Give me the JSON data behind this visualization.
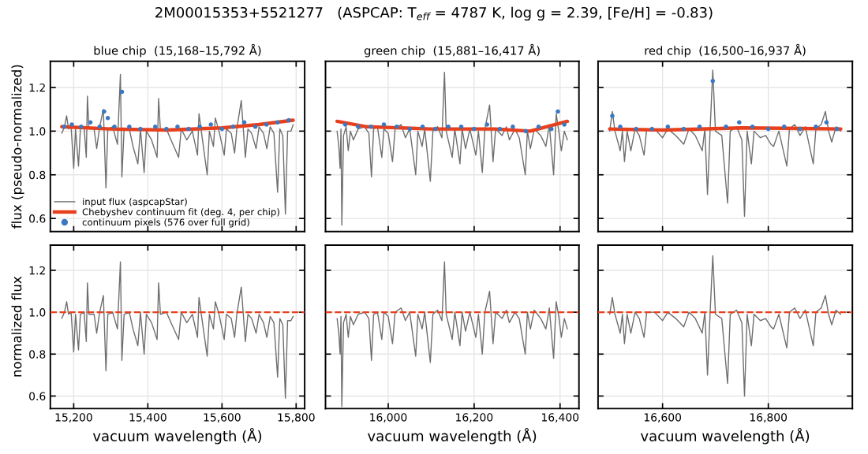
{
  "chart_data": [
    {
      "type": "line",
      "title": "blue chip  (15,168–15,792 Å)",
      "ylabel": "flux (pseudo-normalized)",
      "annotations": [
        "2M00015353+5521277   (ASPCAP: T$_{eff}$ = 4787 K, log g = 2.39, [Fe/H] = -0.83)"
      ],
      "xlim": [
        15137,
        15823
      ],
      "xticks": [
        15200,
        15400,
        15600,
        15800
      ],
      "ylim": [
        0.54,
        1.32
      ],
      "yticks": [
        0.6,
        0.8,
        {
          "value": 1.0,
          "label": "1.0"
        },
        1.2
      ],
      "tick_labels": "y",
      "grid": true,
      "legend": "bottom left",
      "series": [
        {
          "name": "input flux (aspcapStar)",
          "color": "#6e6e6e",
          "x": [
            15168,
            15175,
            15181,
            15186,
            15193,
            15200,
            15205,
            15213,
            15218,
            15228,
            15234,
            15237,
            15241,
            15255,
            15262,
            15270,
            15280,
            15287,
            15292,
            15305,
            15318,
            15326,
            15330,
            15336,
            15350,
            15360,
            15373,
            15380,
            15390,
            15396,
            15410,
            15425,
            15429,
            15434,
            15450,
            15465,
            15483,
            15490,
            15505,
            15520,
            15534,
            15538,
            15545,
            15560,
            15566,
            15577,
            15582,
            15592,
            15606,
            15612,
            15625,
            15634,
            15640,
            15652,
            15663,
            15670,
            15680,
            15692,
            15700,
            15712,
            15721,
            15730,
            15740,
            15750,
            15756,
            15764,
            15771,
            15777,
            15786,
            15792
          ],
          "values": [
            0.99,
            1.02,
            1.07,
            1.01,
            1.02,
            0.83,
            1.01,
            0.84,
            1.01,
            1.02,
            0.88,
            1.16,
            1.01,
            1.01,
            0.92,
            1.02,
            1.1,
            0.74,
            1.01,
            1.02,
            0.94,
            1.26,
            0.79,
            1.01,
            1.01,
            0.93,
            0.85,
            1.01,
            0.81,
            1.0,
            0.96,
            0.88,
            1.15,
            1.0,
            1.01,
            0.95,
            0.88,
            1.01,
            0.96,
            1.0,
            0.89,
            1.08,
            0.99,
            0.8,
            1.0,
            0.93,
            1.06,
            1.0,
            0.89,
            1.01,
            0.99,
            0.9,
            1.01,
            1.14,
            0.88,
            1.01,
            0.99,
            0.92,
            1.02,
            0.99,
            0.92,
            1.02,
            0.99,
            0.72,
            1.01,
            0.98,
            0.62,
            1.0,
            1.0,
            1.03
          ]
        },
        {
          "name": "Chebyshev continuum fit (deg. 4, per chip)",
          "color": "#e8401c",
          "x": [
            15168,
            15300,
            15450,
            15600,
            15700,
            15792
          ],
          "values": [
            1.02,
            1.01,
            1.005,
            1.015,
            1.03,
            1.05
          ]
        },
        {
          "name": "continuum pixels (576 over full grid)",
          "type": "scatter",
          "color": "#3a78c2",
          "x": [
            15175,
            15195,
            15220,
            15245,
            15270,
            15282,
            15292,
            15310,
            15330,
            15350,
            15380,
            15420,
            15450,
            15480,
            15510,
            15540,
            15570,
            15600,
            15630,
            15660,
            15690,
            15720,
            15750,
            15780
          ],
          "values": [
            1.02,
            1.03,
            1.02,
            1.04,
            1.02,
            1.09,
            1.06,
            1.02,
            1.18,
            1.02,
            1.01,
            1.02,
            1.01,
            1.02,
            1.01,
            1.02,
            1.03,
            1.01,
            1.02,
            1.04,
            1.02,
            1.03,
            1.04,
            1.05
          ]
        }
      ]
    },
    {
      "type": "line",
      "title": "green chip  (15,881–16,417 Å)",
      "xlim": [
        15854,
        16444
      ],
      "xticks": [
        16000,
        16200,
        16400
      ],
      "ylim": [
        0.54,
        1.32
      ],
      "yticks": [
        0.6,
        0.8,
        1.0,
        1.2
      ],
      "tick_labels": false,
      "grid": true,
      "series": [
        {
          "color": "#6e6e6e",
          "x": [
            15881,
            15885,
            15888,
            15890,
            15892,
            15896,
            15902,
            15907,
            15912,
            15919,
            15930,
            15945,
            15955,
            15961,
            15966,
            15975,
            15985,
            15990,
            16000,
            16010,
            16016,
            16030,
            16040,
            16050,
            16064,
            16069,
            16079,
            16085,
            16098,
            16104,
            16115,
            16125,
            16131,
            16135,
            16149,
            16155,
            16167,
            16172,
            16180,
            16190,
            16204,
            16210,
            16219,
            16225,
            16236,
            16244,
            16250,
            16265,
            16275,
            16282,
            16295,
            16305,
            16319,
            16324,
            16331,
            16340,
            16355,
            16367,
            16375,
            16385,
            16391,
            16397,
            16403,
            16410,
            16417
          ],
          "values": [
            1.0,
            0.93,
            0.83,
            1.01,
            0.57,
            0.98,
            1.02,
            0.91,
            1.0,
            0.96,
            1.01,
            1.02,
            0.99,
            0.79,
            1.01,
            1.02,
            0.88,
            1.01,
            0.99,
            0.86,
            1.01,
            1.03,
            0.97,
            1.01,
            0.8,
            1.0,
            0.93,
            1.01,
            0.77,
            1.0,
            1.02,
            0.97,
            1.27,
            1.0,
            0.88,
            1.01,
            0.85,
            1.01,
            0.92,
            1.01,
            0.89,
            1.0,
            0.81,
            1.01,
            1.12,
            0.86,
            1.01,
            0.98,
            1.02,
            0.96,
            1.01,
            0.97,
            0.8,
            1.0,
            0.92,
            1.01,
            0.98,
            0.93,
            1.03,
            0.8,
            1.08,
            1.0,
            0.91,
            1.0,
            0.96
          ]
        },
        {
          "color": "#e8401c",
          "x": [
            15881,
            15950,
            16100,
            16250,
            16330,
            16417
          ],
          "values": [
            1.045,
            1.02,
            1.01,
            1.01,
            1.0,
            1.045
          ]
        },
        {
          "type": "scatter",
          "color": "#3a78c2",
          "x": [
            15900,
            15930,
            15960,
            15990,
            16020,
            16050,
            16080,
            16110,
            16140,
            16170,
            16200,
            16230,
            16260,
            16290,
            16320,
            16350,
            16380,
            16395,
            16410
          ],
          "values": [
            1.03,
            1.02,
            1.02,
            1.03,
            1.02,
            1.01,
            1.02,
            1.01,
            1.02,
            1.02,
            1.01,
            1.03,
            1.01,
            1.02,
            1.0,
            1.02,
            1.01,
            1.09,
            1.03
          ]
        }
      ]
    },
    {
      "type": "line",
      "title": "red chip  (16,500–16,937 Å)",
      "xlim": [
        16478,
        16959
      ],
      "xticks": [
        16600,
        16800
      ],
      "ylim": [
        0.54,
        1.32
      ],
      "yticks": [
        0.6,
        0.8,
        1.0,
        1.2
      ],
      "tick_labels": false,
      "grid": true,
      "series": [
        {
          "color": "#6e6e6e",
          "x": [
            16500,
            16505,
            16510,
            16520,
            16524,
            16528,
            16533,
            16540,
            16548,
            16556,
            16565,
            16570,
            16585,
            16600,
            16610,
            16625,
            16640,
            16650,
            16662,
            16675,
            16680,
            16685,
            16690,
            16695,
            16700,
            16712,
            16723,
            16728,
            16740,
            16750,
            16755,
            16760,
            16768,
            16773,
            16785,
            16795,
            16805,
            16810,
            16820,
            16835,
            16840,
            16850,
            16860,
            16870,
            16885,
            16890,
            16900,
            16908,
            16914,
            16920,
            16928,
            16937
          ],
          "values": [
            1.0,
            1.09,
            1.0,
            0.91,
            1.0,
            0.86,
            1.0,
            0.91,
            1.01,
            0.98,
            0.89,
            1.01,
            1.01,
            0.97,
            1.01,
            0.98,
            0.94,
            1.01,
            0.98,
            0.91,
            1.01,
            0.71,
            1.01,
            1.28,
            1.0,
            0.98,
            0.67,
            1.0,
            1.02,
            0.96,
            0.61,
            1.0,
            0.85,
            1.0,
            0.97,
            0.98,
            0.94,
            0.93,
            1.0,
            0.84,
            1.01,
            1.03,
            0.98,
            1.02,
            0.85,
            1.01,
            1.03,
            1.09,
            1.0,
            0.95,
            1.02,
            1.0
          ]
        },
        {
          "color": "#e8401c",
          "x": [
            16500,
            16600,
            16750,
            16937
          ],
          "values": [
            1.01,
            1.005,
            1.015,
            1.01
          ]
        },
        {
          "type": "scatter",
          "color": "#3a78c2",
          "x": [
            16505,
            16520,
            16550,
            16580,
            16610,
            16640,
            16670,
            16695,
            16720,
            16745,
            16770,
            16800,
            16830,
            16860,
            16890,
            16910,
            16930
          ],
          "values": [
            1.07,
            1.02,
            1.01,
            1.01,
            1.02,
            1.01,
            1.02,
            1.23,
            1.02,
            1.04,
            1.02,
            1.01,
            1.02,
            1.01,
            1.02,
            1.04,
            1.01
          ]
        }
      ]
    },
    {
      "type": "line",
      "xlabel": "vacuum wavelength (Å)",
      "ylabel": "normalized flux",
      "xlim": [
        15137,
        15823
      ],
      "xticks": [
        {
          "value": 15200,
          "label": "15,200"
        },
        {
          "value": 15400,
          "label": "15,400"
        },
        {
          "value": 15600,
          "label": "15,600"
        },
        {
          "value": 15800,
          "label": "15,800"
        }
      ],
      "ylim": [
        0.54,
        1.32
      ],
      "yticks": [
        0.6,
        0.8,
        {
          "value": 1.0,
          "label": "1.0"
        },
        1.2
      ],
      "grid": true,
      "ref_lines": [
        {
          "axis": "y",
          "value": 1.0,
          "color": "#e8401c",
          "line_style": "dashed"
        }
      ],
      "series": [
        {
          "color": "#6e6e6e",
          "x": [
            15168,
            15175,
            15181,
            15186,
            15193,
            15200,
            15205,
            15213,
            15218,
            15228,
            15234,
            15237,
            15241,
            15255,
            15262,
            15270,
            15280,
            15287,
            15292,
            15305,
            15318,
            15326,
            15330,
            15336,
            15350,
            15360,
            15373,
            15380,
            15390,
            15396,
            15410,
            15425,
            15429,
            15434,
            15450,
            15465,
            15483,
            15490,
            15505,
            15520,
            15534,
            15538,
            15545,
            15560,
            15566,
            15577,
            15582,
            15592,
            15606,
            15612,
            15625,
            15634,
            15640,
            15652,
            15663,
            15670,
            15680,
            15692,
            15700,
            15712,
            15721,
            15730,
            15740,
            15750,
            15756,
            15764,
            15771,
            15777,
            15786,
            15792
          ],
          "values": [
            0.97,
            1.0,
            1.05,
            0.99,
            1.0,
            0.81,
            0.99,
            0.82,
            0.99,
            1.0,
            0.86,
            1.14,
            0.99,
            0.99,
            0.9,
            1.0,
            1.08,
            0.72,
            0.99,
            1.0,
            0.92,
            1.24,
            0.77,
            0.99,
            1.0,
            0.92,
            0.84,
            1.0,
            0.8,
            0.99,
            0.95,
            0.87,
            1.14,
            0.99,
            1.0,
            0.94,
            0.87,
            1.0,
            0.95,
            0.99,
            0.88,
            1.07,
            0.98,
            0.79,
            0.99,
            0.92,
            1.05,
            0.99,
            0.87,
            0.99,
            0.97,
            0.88,
            0.99,
            1.12,
            0.86,
            0.99,
            0.97,
            0.9,
            0.99,
            0.95,
            0.88,
            0.98,
            0.95,
            0.69,
            0.97,
            0.94,
            0.59,
            0.96,
            0.96,
            0.98
          ]
        }
      ]
    },
    {
      "type": "line",
      "xlabel": "vacuum wavelength (Å)",
      "xlim": [
        15854,
        16444
      ],
      "xticks": [
        {
          "value": 16000,
          "label": "16,000"
        },
        {
          "value": 16200,
          "label": "16,200"
        },
        {
          "value": 16400,
          "label": "16,400"
        }
      ],
      "ylim": [
        0.54,
        1.32
      ],
      "yticks": [
        0.6,
        0.8,
        1.0,
        1.2
      ],
      "tick_labels": "x",
      "grid": true,
      "ref_lines": [
        {
          "axis": "y",
          "value": 1.0,
          "color": "#e8401c",
          "line_style": "dashed"
        }
      ],
      "series": [
        {
          "color": "#6e6e6e",
          "x": [
            15881,
            15885,
            15888,
            15890,
            15892,
            15896,
            15902,
            15907,
            15912,
            15919,
            15930,
            15945,
            15955,
            15961,
            15966,
            15975,
            15985,
            15990,
            16000,
            16010,
            16016,
            16030,
            16040,
            16050,
            16064,
            16069,
            16079,
            16085,
            16098,
            16104,
            16115,
            16125,
            16131,
            16135,
            16149,
            16155,
            16167,
            16172,
            16180,
            16190,
            16204,
            16210,
            16219,
            16225,
            16236,
            16244,
            16250,
            16265,
            16275,
            16282,
            16295,
            16305,
            16319,
            16324,
            16331,
            16340,
            16355,
            16367,
            16375,
            16385,
            16391,
            16397,
            16403,
            16410,
            16417
          ],
          "values": [
            0.97,
            0.9,
            0.8,
            0.98,
            0.55,
            0.95,
            0.99,
            0.88,
            0.98,
            0.94,
            0.99,
            1.0,
            0.97,
            0.77,
            0.99,
            1.0,
            0.87,
            1.0,
            0.98,
            0.85,
            1.0,
            1.02,
            0.96,
            1.0,
            0.79,
            0.99,
            0.92,
            1.0,
            0.76,
            0.99,
            1.01,
            0.96,
            1.24,
            0.99,
            0.87,
            1.0,
            0.84,
            1.0,
            0.91,
            1.0,
            0.88,
            0.99,
            0.8,
            1.0,
            1.1,
            0.85,
            1.0,
            0.97,
            1.01,
            0.95,
            1.0,
            0.97,
            0.8,
            1.0,
            0.92,
            1.01,
            0.97,
            0.92,
            1.02,
            0.78,
            1.05,
            0.98,
            0.88,
            0.97,
            0.92
          ]
        }
      ]
    },
    {
      "type": "line",
      "xlabel": "vacuum wavelength (Å)",
      "xlim": [
        16478,
        16959
      ],
      "xticks": [
        {
          "value": 16600,
          "label": "16,600"
        },
        {
          "value": 16800,
          "label": "16,800"
        }
      ],
      "ylim": [
        0.54,
        1.32
      ],
      "yticks": [
        0.6,
        0.8,
        1.0,
        1.2
      ],
      "tick_labels": "x",
      "grid": true,
      "ref_lines": [
        {
          "axis": "y",
          "value": 1.0,
          "color": "#e8401c",
          "line_style": "dashed"
        }
      ],
      "series": [
        {
          "color": "#6e6e6e",
          "x": [
            16500,
            16505,
            16510,
            16520,
            16524,
            16528,
            16533,
            16540,
            16548,
            16556,
            16565,
            16570,
            16585,
            16600,
            16610,
            16625,
            16640,
            16650,
            16662,
            16675,
            16680,
            16685,
            16690,
            16695,
            16700,
            16712,
            16723,
            16728,
            16740,
            16750,
            16755,
            16760,
            16768,
            16773,
            16785,
            16795,
            16805,
            16810,
            16820,
            16835,
            16840,
            16850,
            16860,
            16870,
            16885,
            16890,
            16900,
            16908,
            16914,
            16920,
            16928,
            16937
          ],
          "values": [
            0.99,
            1.07,
            0.99,
            0.9,
            0.99,
            0.85,
            0.99,
            0.9,
            1.0,
            0.97,
            0.88,
            1.0,
            1.0,
            0.96,
            1.0,
            0.97,
            0.93,
            1.0,
            0.97,
            0.9,
            1.0,
            0.7,
            1.0,
            1.27,
            0.99,
            0.97,
            0.66,
            0.99,
            1.01,
            0.95,
            0.6,
            0.99,
            0.84,
            0.99,
            0.96,
            0.97,
            0.93,
            0.92,
            0.99,
            0.83,
            1.0,
            1.02,
            0.97,
            1.01,
            0.84,
            1.0,
            1.02,
            1.08,
            0.99,
            0.94,
            1.01,
            0.99
          ]
        }
      ]
    }
  ]
}
